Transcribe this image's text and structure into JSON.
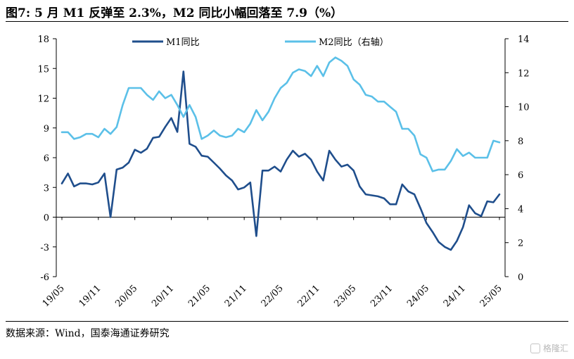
{
  "title": "图7:  5 月 M1 反弹至 2.3%，M2 同比小幅回落至 7.9（%）",
  "source": "数据来源：Wind，国泰海通证券研究",
  "watermark": {
    "text": "格隆汇",
    "icon": "gelonghui-logo-icon"
  },
  "chart_data": {
    "type": "line",
    "x_ticks": [
      "19/05",
      "19/11",
      "20/05",
      "20/11",
      "21/05",
      "21/11",
      "22/05",
      "22/11",
      "23/05",
      "23/11",
      "24/05",
      "24/11",
      "25/05"
    ],
    "x": [
      "19/05",
      "19/06",
      "19/07",
      "19/08",
      "19/09",
      "19/10",
      "19/11",
      "19/12",
      "20/01",
      "20/02",
      "20/03",
      "20/04",
      "20/05",
      "20/06",
      "20/07",
      "20/08",
      "20/09",
      "20/10",
      "20/11",
      "20/12",
      "21/01",
      "21/02",
      "21/03",
      "21/04",
      "21/05",
      "21/06",
      "21/07",
      "21/08",
      "21/09",
      "21/10",
      "21/11",
      "21/12",
      "22/01",
      "22/02",
      "22/03",
      "22/04",
      "22/05",
      "22/06",
      "22/07",
      "22/08",
      "22/09",
      "22/10",
      "22/11",
      "22/12",
      "23/01",
      "23/02",
      "23/03",
      "23/04",
      "23/05",
      "23/06",
      "23/07",
      "23/08",
      "23/09",
      "23/10",
      "23/11",
      "23/12",
      "24/01",
      "24/02",
      "24/03",
      "24/04",
      "24/05",
      "24/06",
      "24/07",
      "24/08",
      "24/09",
      "24/10",
      "24/11",
      "24/12",
      "25/01",
      "25/02",
      "25/03",
      "25/04",
      "25/05"
    ],
    "y_left": {
      "ticks": [
        18,
        15,
        12,
        9,
        6,
        3,
        0,
        -3,
        -6
      ],
      "lim": [
        -6,
        18
      ]
    },
    "y_right": {
      "ticks": [
        14,
        12,
        10,
        8,
        6,
        4,
        2,
        0
      ],
      "lim": [
        0,
        14
      ]
    },
    "legend_position": "top",
    "series": [
      {
        "name": "M1同比",
        "axis": "left",
        "color": "#1f4e8c",
        "values": [
          3.4,
          4.4,
          3.1,
          3.4,
          3.4,
          3.3,
          3.5,
          4.4,
          0.0,
          4.8,
          5.0,
          5.5,
          6.8,
          6.5,
          6.9,
          8.0,
          8.1,
          9.1,
          10.0,
          8.6,
          14.7,
          7.4,
          7.1,
          6.2,
          6.1,
          5.5,
          4.9,
          4.2,
          3.7,
          2.8,
          3.0,
          3.5,
          -1.9,
          4.7,
          4.7,
          5.1,
          4.6,
          5.8,
          6.7,
          6.1,
          6.4,
          5.8,
          4.6,
          3.7,
          6.7,
          5.8,
          5.1,
          5.3,
          4.7,
          3.1,
          2.3,
          2.2,
          2.1,
          1.9,
          1.3,
          1.3,
          3.3,
          2.6,
          2.3,
          0.9,
          -0.6,
          -1.5,
          -2.5,
          -3.0,
          -3.3,
          -2.4,
          -1.0,
          1.2,
          0.4,
          0.1,
          1.6,
          1.5,
          2.3
        ]
      },
      {
        "name": "M2同比（右轴）",
        "axis": "right",
        "color": "#5bc0e8",
        "values": [
          8.5,
          8.5,
          8.1,
          8.2,
          8.4,
          8.4,
          8.2,
          8.7,
          8.4,
          8.8,
          10.1,
          11.1,
          11.1,
          11.1,
          10.7,
          10.4,
          10.9,
          10.5,
          10.7,
          10.1,
          9.4,
          10.1,
          9.4,
          8.1,
          8.3,
          8.6,
          8.3,
          8.2,
          8.3,
          8.7,
          8.5,
          9.0,
          9.8,
          9.2,
          9.7,
          10.5,
          11.1,
          11.4,
          12.0,
          12.2,
          12.1,
          11.8,
          12.4,
          11.8,
          12.6,
          12.9,
          12.7,
          12.4,
          11.6,
          11.3,
          10.7,
          10.6,
          10.3,
          10.3,
          10.0,
          9.7,
          8.7,
          8.7,
          8.3,
          7.2,
          7.0,
          6.2,
          6.3,
          6.3,
          6.8,
          7.5,
          7.1,
          7.3,
          7.0,
          7.0,
          7.0,
          8.0,
          7.9
        ]
      }
    ]
  }
}
